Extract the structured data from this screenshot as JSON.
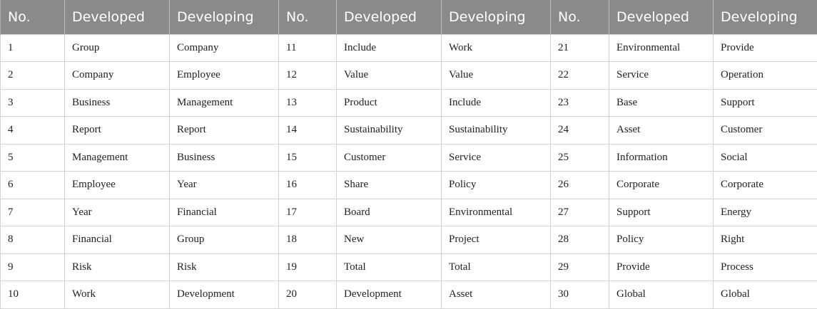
{
  "table": {
    "headers": [
      "No.",
      "Developed",
      "Developing",
      "No.",
      "Developed",
      "Developing",
      "No.",
      "Developed",
      "Developing"
    ],
    "rows": [
      [
        "1",
        "Group",
        "Company",
        "11",
        "Include",
        "Work",
        "21",
        "Environmental",
        "Provide"
      ],
      [
        "2",
        "Company",
        "Employee",
        "12",
        "Value",
        "Value",
        "22",
        "Service",
        "Operation"
      ],
      [
        "3",
        "Business",
        "Management",
        "13",
        "Product",
        "Include",
        "23",
        "Base",
        "Support"
      ],
      [
        "4",
        "Report",
        "Report",
        "14",
        "Sustainability",
        "Sustainability",
        "24",
        "Asset",
        "Customer"
      ],
      [
        "5",
        "Management",
        "Business",
        "15",
        "Customer",
        "Service",
        "25",
        "Information",
        "Social"
      ],
      [
        "6",
        "Employee",
        "Year",
        "16",
        "Share",
        "Policy",
        "26",
        "Corporate",
        "Corporate"
      ],
      [
        "7",
        "Year",
        "Financial",
        "17",
        "Board",
        "Environmental",
        "27",
        "Support",
        "Energy"
      ],
      [
        "8",
        "Financial",
        "Group",
        "18",
        "New",
        "Project",
        "28",
        "Policy",
        "Right"
      ],
      [
        "9",
        "Risk",
        "Risk",
        "19",
        "Total",
        "Total",
        "29",
        "Provide",
        "Process"
      ],
      [
        "10",
        "Work",
        "Development",
        "20",
        "Development",
        "Asset",
        "30",
        "Global",
        "Global"
      ]
    ]
  },
  "colors": {
    "header_background": "#8a8a8a",
    "header_text": "#ffffff",
    "grid_line": "#d3d3d3"
  }
}
